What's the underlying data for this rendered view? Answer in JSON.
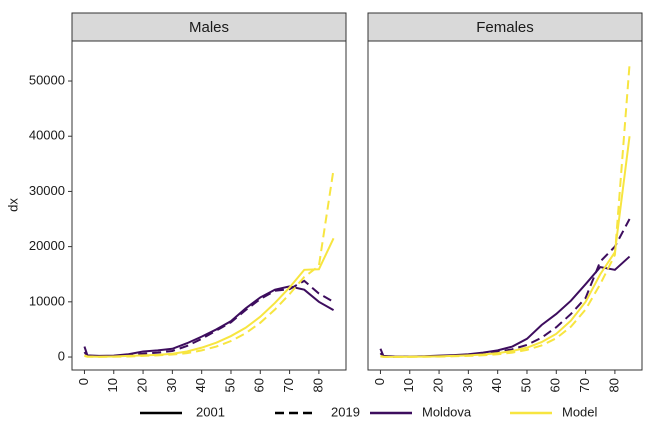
{
  "chart_data": [
    {
      "type": "line",
      "title": "Males",
      "ylabel": "dx",
      "x": [
        0,
        1,
        5,
        10,
        15,
        20,
        25,
        30,
        35,
        40,
        45,
        50,
        55,
        60,
        65,
        70,
        75,
        80,
        85
      ],
      "xlim": [
        -4.25,
        89.25
      ],
      "xticks": [
        0,
        10,
        20,
        30,
        40,
        50,
        60,
        70,
        80
      ],
      "ylim": [
        -2350,
        57250
      ],
      "yticks": [
        0,
        10000,
        20000,
        30000,
        40000,
        50000
      ],
      "series": [
        {
          "legend_color": 0,
          "legend_linetype": 0,
          "values": [
            1900,
            300,
            200,
            250,
            500,
            1000,
            1200,
            1500,
            2500,
            3700,
            5000,
            6500,
            8800,
            10800,
            12200,
            12800,
            12200,
            10000,
            8500
          ]
        },
        {
          "legend_color": 0,
          "legend_linetype": 1,
          "values": [
            900,
            150,
            100,
            150,
            300,
            600,
            800,
            1100,
            2000,
            3300,
            4800,
            6300,
            8500,
            10500,
            12000,
            12300,
            13800,
            11500,
            10000
          ]
        },
        {
          "legend_color": 1,
          "legend_linetype": 0,
          "values": [
            300,
            100,
            50,
            100,
            200,
            300,
            400,
            600,
            1000,
            1700,
            2600,
            3800,
            5300,
            7300,
            9800,
            12600,
            15800,
            15900,
            21500
          ]
        },
        {
          "legend_color": 1,
          "legend_linetype": 1,
          "values": [
            200,
            50,
            30,
            50,
            100,
            200,
            300,
            450,
            700,
            1200,
            1900,
            2900,
            4300,
            6200,
            8600,
            11400,
            14500,
            16500,
            34000
          ]
        }
      ]
    },
    {
      "type": "line",
      "title": "Females",
      "x": [
        0,
        1,
        5,
        10,
        15,
        20,
        25,
        30,
        35,
        40,
        45,
        50,
        55,
        60,
        65,
        70,
        75,
        80,
        85
      ],
      "xlim": [
        -4.25,
        89.25
      ],
      "xticks": [
        0,
        10,
        20,
        30,
        40,
        50,
        60,
        70,
        80
      ],
      "ylim": [
        -2350,
        57250
      ],
      "series": [
        {
          "legend_color": 0,
          "legend_linetype": 0,
          "values": [
            1500,
            200,
            100,
            100,
            150,
            250,
            350,
            500,
            800,
            1200,
            1900,
            3300,
            5800,
            7800,
            10200,
            13200,
            16300,
            15800,
            18200
          ]
        },
        {
          "legend_color": 0,
          "legend_linetype": 1,
          "values": [
            700,
            100,
            50,
            80,
            100,
            150,
            250,
            350,
            550,
            900,
            1400,
            2200,
            3500,
            5400,
            7800,
            10700,
            17300,
            20000,
            25000
          ]
        },
        {
          "legend_color": 1,
          "legend_linetype": 0,
          "values": [
            200,
            50,
            30,
            40,
            70,
            120,
            200,
            300,
            450,
            700,
            1100,
            1700,
            2700,
            4200,
            6600,
            10000,
            15000,
            19000,
            40000
          ]
        },
        {
          "legend_color": 1,
          "legend_linetype": 1,
          "values": [
            100,
            30,
            20,
            30,
            50,
            80,
            130,
            200,
            320,
            500,
            800,
            1300,
            2100,
            3400,
            5500,
            8600,
            13200,
            18500,
            53000
          ]
        }
      ]
    }
  ],
  "legend": {
    "linetypes": [
      {
        "label": "2001",
        "dash": "solid"
      },
      {
        "label": "2019",
        "dash": "dashed"
      }
    ],
    "colors": [
      {
        "label": "Moldova",
        "color": "#3d0d5e"
      },
      {
        "label": "Model",
        "color": "#f7e540"
      }
    ]
  }
}
